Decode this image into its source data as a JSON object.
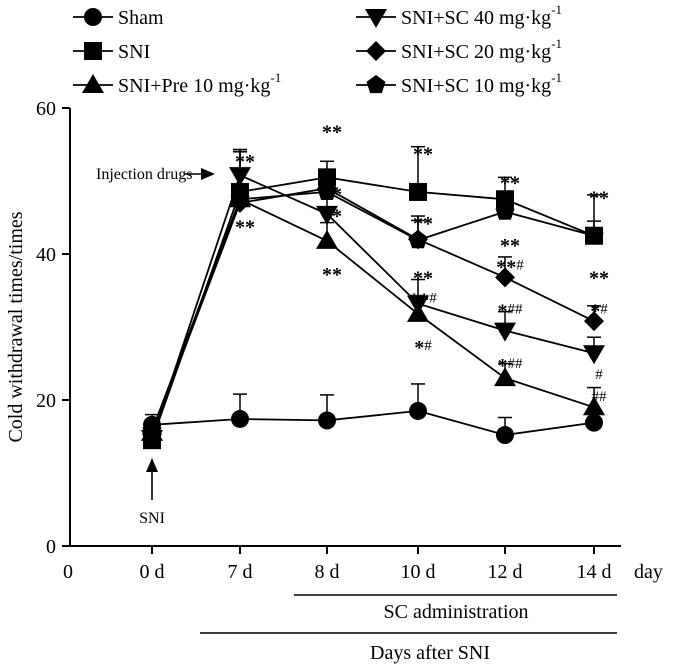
{
  "chart_data": {
    "type": "line",
    "ylabel": "Cold withdrawal times/times",
    "xlabel": "day",
    "ylim": [
      0,
      60
    ],
    "yticks": [
      0,
      20,
      40,
      60
    ],
    "x_origin_label": "0",
    "categories": [
      "0 d",
      "7 d",
      "8 d",
      "10 d",
      "12 d",
      "14 d"
    ],
    "series": [
      {
        "name": "Sham",
        "marker": "circle",
        "values": [
          16.6,
          17.4,
          17.2,
          18.5,
          15.2,
          16.9
        ],
        "errors": [
          1.4,
          3.4,
          3.5,
          3.7,
          2.4,
          1.8
        ]
      },
      {
        "name": "SNI",
        "marker": "square",
        "values": [
          14.5,
          48.5,
          50.5,
          48.5,
          47.5,
          42.5
        ],
        "errors": [
          1.8,
          5.5,
          2.2,
          6.2,
          3.0,
          5.6
        ]
      },
      {
        "name": "SNI+Pre 10 mg·kg",
        "unit_sup": "-1",
        "marker": "triangle-up",
        "values": [
          15.5,
          47.5,
          41.8,
          31.8,
          23.0,
          19.0
        ],
        "errors": [
          1.5,
          6.8,
          2.5,
          2.5,
          2.0,
          2.7
        ]
      },
      {
        "name": "SNI+SC 40 mg·kg",
        "unit_sup": "-1",
        "marker": "triangle-down",
        "values": [
          14.8,
          50.8,
          45.5,
          33.2,
          29.5,
          26.4
        ],
        "errors": [
          1.5,
          3.5,
          5.5,
          3.3,
          2.6,
          2.2
        ]
      },
      {
        "name": "SNI+SC 20 mg·kg",
        "unit_sup": "-1",
        "marker": "diamond",
        "values": [
          15.3,
          47.0,
          49.0,
          42.0,
          36.8,
          30.8
        ],
        "errors": [
          1.4,
          4.0,
          2.4,
          2.6,
          2.8,
          2.1
        ]
      },
      {
        "name": "SNI+SC 10 mg·kg",
        "unit_sup": "-1",
        "marker": "pentagon",
        "values": [
          15.8,
          47.5,
          48.5,
          41.9,
          45.8,
          42.5
        ],
        "errors": [
          1.4,
          4.0,
          2.4,
          3.3,
          2.2,
          2.0
        ]
      }
    ],
    "significance": [
      {
        "category": "7 d",
        "value": 54,
        "text": "**"
      },
      {
        "category": "7 d",
        "value": 45,
        "text": "**"
      },
      {
        "category": "8 d",
        "value": 58,
        "text": "**"
      },
      {
        "category": "8 d",
        "value": 49.5,
        "text": "**"
      },
      {
        "category": "8 d",
        "value": 46.5,
        "text": "**"
      },
      {
        "category": "8 d",
        "value": 38.5,
        "text": "**"
      },
      {
        "category": "10 d",
        "value": 55,
        "text": "**"
      },
      {
        "category": "10 d",
        "value": 45.5,
        "text": "**"
      },
      {
        "category": "10 d",
        "value": 38,
        "text": "**"
      },
      {
        "category": "10 d",
        "value": 35,
        "text": "**",
        "hash": "#"
      },
      {
        "category": "10 d",
        "value": 28.5,
        "text": "*",
        "hash": "#"
      },
      {
        "category": "12 d",
        "value": 51,
        "text": "**"
      },
      {
        "category": "12 d",
        "value": 42.5,
        "text": "**"
      },
      {
        "category": "12 d",
        "value": 39.5,
        "text": "**",
        "hash": "#"
      },
      {
        "category": "12 d",
        "value": 33.5,
        "text": "*",
        "hash": "##"
      },
      {
        "category": "12 d",
        "value": 26,
        "text": "*",
        "hash": "##"
      },
      {
        "category": "14 d",
        "value": 49,
        "text": "**"
      },
      {
        "category": "14 d",
        "value": 38,
        "text": "**"
      },
      {
        "category": "14 d",
        "value": 33.5,
        "text": "*",
        "hash": "#"
      },
      {
        "category": "14 d",
        "value": 24.5,
        "text": "",
        "hash": "#"
      },
      {
        "category": "14 d",
        "value": 21.5,
        "text": "",
        "hash": "##"
      }
    ],
    "annotations": {
      "injection": {
        "text": "Injection drugs",
        "value": 50.5
      },
      "sni_arrow": {
        "text": "SNI"
      },
      "sc_bracket": {
        "text": "SC administration"
      },
      "days_bracket": {
        "text": "Days after SNI"
      }
    }
  }
}
